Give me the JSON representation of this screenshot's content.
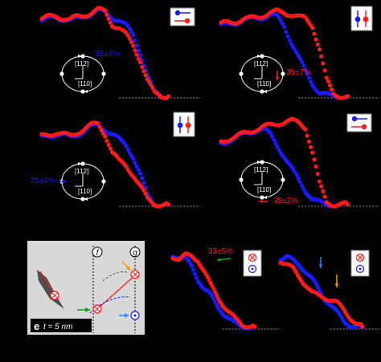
{
  "colors": {
    "red": "#ff1a1a",
    "blue": "#1a1aff",
    "green": "#10a010",
    "orange": "#ff9900",
    "background": "#000000",
    "baseline": "#9a9a9a",
    "loop": "#d0d0d0"
  },
  "crystal_labels": {
    "top": "[112]",
    "bottom": "[110]"
  },
  "panel_e": {
    "letter": "e",
    "thickness": "t = 5 nm",
    "marker_f": "f",
    "marker_g": "g"
  },
  "chart_data": [
    {
      "type": "scatter",
      "panel": "top-left",
      "annotation": "32±5%",
      "annotation_color": "#1a1aff",
      "legend_orientation": "horizontal",
      "series": [
        {
          "color": "#ff1a1a",
          "values": [
            [
              0,
              0.88
            ],
            [
              0.05,
              0.9
            ],
            [
              0.1,
              0.91
            ],
            [
              0.15,
              0.89
            ],
            [
              0.2,
              0.87
            ],
            [
              0.25,
              0.9
            ],
            [
              0.3,
              0.92
            ],
            [
              0.35,
              0.95
            ],
            [
              0.4,
              0.98
            ],
            [
              0.45,
              0.96
            ],
            [
              0.5,
              0.82
            ],
            [
              0.55,
              0.78
            ],
            [
              0.6,
              0.7
            ],
            [
              0.65,
              0.58
            ],
            [
              0.7,
              0.42
            ],
            [
              0.75,
              0.2
            ],
            [
              0.8,
              0.05
            ],
            [
              0.85,
              0.02
            ],
            [
              0.9,
              0.02
            ]
          ]
        },
        {
          "color": "#1a1aff",
          "values": [
            [
              0,
              0.86
            ],
            [
              0.05,
              0.88
            ],
            [
              0.1,
              0.9
            ],
            [
              0.15,
              0.88
            ],
            [
              0.2,
              0.86
            ],
            [
              0.25,
              0.88
            ],
            [
              0.3,
              0.91
            ],
            [
              0.35,
              0.94
            ],
            [
              0.4,
              0.97
            ],
            [
              0.45,
              0.95
            ],
            [
              0.5,
              0.9
            ],
            [
              0.55,
              0.86
            ],
            [
              0.6,
              0.8
            ],
            [
              0.65,
              0.7
            ],
            [
              0.7,
              0.5
            ],
            [
              0.75,
              0.25
            ],
            [
              0.8,
              0.06
            ],
            [
              0.85,
              0.02
            ],
            [
              0.9,
              0.02
            ]
          ]
        }
      ]
    },
    {
      "type": "scatter",
      "panel": "top-right",
      "annotation": "39±7%",
      "annotation_color": "#ff1a1a",
      "legend_orientation": "vertical",
      "series": [
        {
          "color": "#ff1a1a",
          "values": [
            [
              0,
              0.82
            ],
            [
              0.05,
              0.84
            ],
            [
              0.1,
              0.85
            ],
            [
              0.15,
              0.87
            ],
            [
              0.2,
              0.88
            ],
            [
              0.25,
              0.9
            ],
            [
              0.3,
              0.92
            ],
            [
              0.35,
              0.94
            ],
            [
              0.4,
              0.96
            ],
            [
              0.45,
              0.95
            ],
            [
              0.5,
              0.93
            ],
            [
              0.55,
              0.9
            ],
            [
              0.6,
              0.88
            ],
            [
              0.65,
              0.8
            ],
            [
              0.7,
              0.55
            ],
            [
              0.75,
              0.2
            ],
            [
              0.8,
              0.04
            ],
            [
              0.85,
              0.02
            ],
            [
              0.9,
              0.02
            ]
          ]
        },
        {
          "color": "#1a1aff",
          "values": [
            [
              0,
              0.8
            ],
            [
              0.05,
              0.82
            ],
            [
              0.1,
              0.84
            ],
            [
              0.15,
              0.86
            ],
            [
              0.2,
              0.87
            ],
            [
              0.25,
              0.89
            ],
            [
              0.3,
              0.9
            ],
            [
              0.35,
              0.92
            ],
            [
              0.4,
              0.9
            ],
            [
              0.45,
              0.8
            ],
            [
              0.5,
              0.62
            ],
            [
              0.55,
              0.45
            ],
            [
              0.6,
              0.3
            ],
            [
              0.65,
              0.16
            ],
            [
              0.7,
              0.06
            ],
            [
              0.75,
              0.03
            ],
            [
              0.8,
              0.02
            ],
            [
              0.85,
              0.02
            ],
            [
              0.9,
              0.02
            ]
          ]
        }
      ]
    },
    {
      "type": "scatter",
      "panel": "middle-left",
      "annotation": "25±6%",
      "annotation_color": "#1a1aff",
      "legend_orientation": "vertical",
      "series": [
        {
          "color": "#ff1a1a",
          "values": [
            [
              0,
              0.78
            ],
            [
              0.05,
              0.8
            ],
            [
              0.1,
              0.82
            ],
            [
              0.15,
              0.8
            ],
            [
              0.2,
              0.78
            ],
            [
              0.25,
              0.82
            ],
            [
              0.3,
              0.86
            ],
            [
              0.35,
              0.9
            ],
            [
              0.4,
              0.92
            ],
            [
              0.45,
              0.8
            ],
            [
              0.5,
              0.6
            ],
            [
              0.55,
              0.5
            ],
            [
              0.6,
              0.45
            ],
            [
              0.65,
              0.35
            ],
            [
              0.7,
              0.22
            ],
            [
              0.75,
              0.08
            ],
            [
              0.8,
              0.03
            ],
            [
              0.85,
              0.02
            ],
            [
              0.9,
              0.02
            ]
          ]
        },
        {
          "color": "#1a1aff",
          "values": [
            [
              0,
              0.76
            ],
            [
              0.05,
              0.79
            ],
            [
              0.1,
              0.8
            ],
            [
              0.15,
              0.79
            ],
            [
              0.2,
              0.77
            ],
            [
              0.25,
              0.8
            ],
            [
              0.3,
              0.84
            ],
            [
              0.35,
              0.88
            ],
            [
              0.4,
              0.9
            ],
            [
              0.45,
              0.86
            ],
            [
              0.5,
              0.8
            ],
            [
              0.55,
              0.74
            ],
            [
              0.6,
              0.68
            ],
            [
              0.65,
              0.55
            ],
            [
              0.7,
              0.35
            ],
            [
              0.75,
              0.12
            ],
            [
              0.8,
              0.03
            ],
            [
              0.85,
              0.02
            ],
            [
              0.9,
              0.02
            ]
          ]
        }
      ]
    },
    {
      "type": "scatter",
      "panel": "middle-right",
      "annotation": "39±2%",
      "annotation_color": "#ff1a1a",
      "legend_orientation": "horizontal",
      "series": [
        {
          "color": "#ff1a1a",
          "values": [
            [
              0,
              0.72
            ],
            [
              0.05,
              0.75
            ],
            [
              0.1,
              0.77
            ],
            [
              0.15,
              0.8
            ],
            [
              0.2,
              0.83
            ],
            [
              0.25,
              0.86
            ],
            [
              0.3,
              0.88
            ],
            [
              0.35,
              0.9
            ],
            [
              0.4,
              0.92
            ],
            [
              0.45,
              0.94
            ],
            [
              0.5,
              0.95
            ],
            [
              0.55,
              0.93
            ],
            [
              0.6,
              0.88
            ],
            [
              0.65,
              0.6
            ],
            [
              0.7,
              0.25
            ],
            [
              0.75,
              0.05
            ],
            [
              0.8,
              0.02
            ],
            [
              0.85,
              0.02
            ],
            [
              0.9,
              0.02
            ]
          ]
        },
        {
          "color": "#1a1aff",
          "values": [
            [
              0,
              0.7
            ],
            [
              0.05,
              0.73
            ],
            [
              0.1,
              0.76
            ],
            [
              0.15,
              0.79
            ],
            [
              0.2,
              0.82
            ],
            [
              0.25,
              0.85
            ],
            [
              0.3,
              0.86
            ],
            [
              0.35,
              0.8
            ],
            [
              0.4,
              0.68
            ],
            [
              0.45,
              0.55
            ],
            [
              0.5,
              0.42
            ],
            [
              0.55,
              0.3
            ],
            [
              0.6,
              0.18
            ],
            [
              0.65,
              0.08
            ],
            [
              0.7,
              0.04
            ],
            [
              0.75,
              0.02
            ],
            [
              0.8,
              0.02
            ],
            [
              0.85,
              0.02
            ],
            [
              0.9,
              0.02
            ]
          ]
        }
      ]
    },
    {
      "type": "scatter",
      "panel": "bottom-middle",
      "annotation": "33±5%",
      "annotation_color": "#ff1a1a",
      "series": [
        {
          "color": "#ff1a1a",
          "values": [
            [
              0,
              0.9
            ],
            [
              0.07,
              0.88
            ],
            [
              0.14,
              0.92
            ],
            [
              0.21,
              0.9
            ],
            [
              0.28,
              0.86
            ],
            [
              0.35,
              0.72
            ],
            [
              0.42,
              0.55
            ],
            [
              0.49,
              0.42
            ],
            [
              0.56,
              0.3
            ],
            [
              0.63,
              0.2
            ],
            [
              0.7,
              0.12
            ],
            [
              0.77,
              0.06
            ],
            [
              0.84,
              0.04
            ],
            [
              0.91,
              0.03
            ]
          ]
        },
        {
          "color": "#1a1aff",
          "values": [
            [
              0,
              0.92
            ],
            [
              0.07,
              0.9
            ],
            [
              0.14,
              0.88
            ],
            [
              0.21,
              0.78
            ],
            [
              0.28,
              0.62
            ],
            [
              0.35,
              0.5
            ],
            [
              0.42,
              0.42
            ],
            [
              0.49,
              0.3
            ],
            [
              0.56,
              0.2
            ],
            [
              0.63,
              0.12
            ],
            [
              0.7,
              0.06
            ],
            [
              0.77,
              0.04
            ],
            [
              0.84,
              0.03
            ],
            [
              0.91,
              0.02
            ]
          ]
        }
      ]
    },
    {
      "type": "scatter",
      "panel": "bottom-right",
      "series": [
        {
          "color": "#ff1a1a",
          "values": [
            [
              0,
              0.85
            ],
            [
              0.07,
              0.8
            ],
            [
              0.14,
              0.75
            ],
            [
              0.21,
              0.65
            ],
            [
              0.28,
              0.55
            ],
            [
              0.35,
              0.45
            ],
            [
              0.42,
              0.42
            ],
            [
              0.49,
              0.4
            ],
            [
              0.56,
              0.36
            ],
            [
              0.63,
              0.32
            ],
            [
              0.7,
              0.25
            ],
            [
              0.77,
              0.15
            ],
            [
              0.84,
              0.06
            ],
            [
              0.91,
              0.03
            ]
          ]
        },
        {
          "color": "#1a1aff",
          "values": [
            [
              0,
              0.88
            ],
            [
              0.07,
              0.9
            ],
            [
              0.14,
              0.85
            ],
            [
              0.21,
              0.8
            ],
            [
              0.28,
              0.72
            ],
            [
              0.35,
              0.62
            ],
            [
              0.42,
              0.5
            ],
            [
              0.49,
              0.38
            ],
            [
              0.56,
              0.3
            ],
            [
              0.63,
              0.2
            ],
            [
              0.7,
              0.1
            ],
            [
              0.77,
              0.05
            ],
            [
              0.84,
              0.03
            ],
            [
              0.91,
              0.02
            ]
          ]
        }
      ]
    }
  ]
}
